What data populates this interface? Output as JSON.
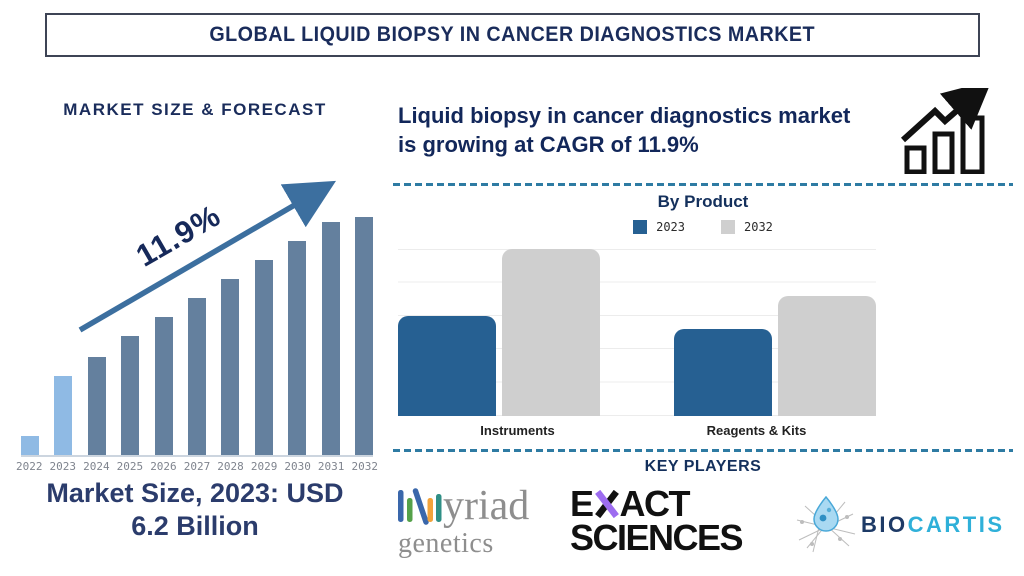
{
  "header": {
    "title": "GLOBAL LIQUID BIOPSY IN CANCER DIAGNOSTICS MARKET"
  },
  "left_panel": {
    "section_title": "MARKET SIZE & FORECAST",
    "growth_label": "11.9%",
    "caption_line1": "Market Size, 2023: USD",
    "caption_line2": "6.2 Billion"
  },
  "right_panel": {
    "headline_line1": "Liquid biopsy in cancer diagnostics market",
    "headline_line2": "is growing at CAGR of 11.9%",
    "by_product_title": "By Product",
    "key_players_title": "KEY PLAYERS",
    "categories": [
      "Instruments",
      "Reagents & Kits"
    ],
    "players": [
      {
        "name": "Myriad Genetics",
        "wordmark_top": "yriad",
        "wordmark_bottom": "genetics"
      },
      {
        "name": "Exact Sciences",
        "line1_prefix": "E",
        "line1_suffix": "ACT",
        "line2": "SCIENCES"
      },
      {
        "name": "Biocartis",
        "word_part1": "BIO",
        "word_part2": "CARTIS"
      }
    ]
  },
  "chart_data": [
    {
      "type": "bar",
      "title": "MARKET SIZE & FORECAST",
      "categories": [
        "2022",
        "2023",
        "2024",
        "2025",
        "2026",
        "2027",
        "2028",
        "2029",
        "2030",
        "2031",
        "2032"
      ],
      "values_relative_pct": [
        8,
        33,
        41,
        50,
        58,
        66,
        74,
        82,
        90,
        98,
        100
      ],
      "highlight": {
        "years": [
          "2022",
          "2023"
        ],
        "color": "#8fbae4"
      },
      "bar_color": "#64809e",
      "annotation": "11.9%",
      "note": "Market Size, 2023: USD 6.2 Billion",
      "xlabel": "",
      "ylabel": "",
      "y_axis": "hidden",
      "grid": false
    },
    {
      "type": "bar",
      "title": "By Product",
      "categories": [
        "Instruments",
        "Reagents & Kits"
      ],
      "series": [
        {
          "name": "2023",
          "values_relative_pct": [
            60,
            52
          ],
          "color": "#266092"
        },
        {
          "name": "2032",
          "values_relative_pct": [
            100,
            72
          ],
          "color": "#cfcfcf"
        }
      ],
      "legend_position": "top",
      "grid": true,
      "y_axis": "hidden"
    }
  ],
  "colors": {
    "navy_text": "#14305c",
    "arrow_blue": "#3c6f9f",
    "forecast_bar": "#64809e",
    "forecast_bar_highlight": "#8fbae4",
    "product_bar_2023": "#266092",
    "product_bar_2032": "#cfcfcf",
    "dashed_separator": "#2e7ba3"
  }
}
